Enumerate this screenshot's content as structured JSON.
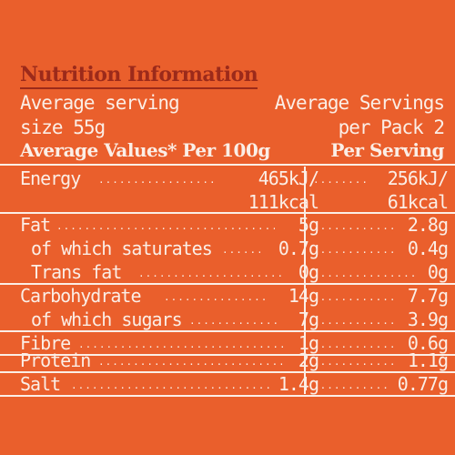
{
  "title": "Nutrition Information",
  "serving": {
    "left_line1": "Average serving",
    "left_line2": "size 55g",
    "right_line1": "Average Servings",
    "right_line2": "per Pack 2"
  },
  "header": {
    "left": "Average Values* Per 100g",
    "right": "Per Serving"
  },
  "rows": [
    {
      "label": "Energy",
      "per100": "465kJ/",
      "per_serving": "256kJ/"
    },
    {
      "label": "",
      "per100": "111kcal",
      "per_serving": "61kcal"
    },
    {
      "label": "Fat",
      "per100": "5g",
      "per_serving": "2.8g"
    },
    {
      "label": "of which saturates",
      "per100": "0.7g",
      "per_serving": "0.4g"
    },
    {
      "label": "Trans fat",
      "per100": "0g",
      "per_serving": "0g"
    },
    {
      "label": "Carbohydrate",
      "per100": "14g",
      "per_serving": "7.7g"
    },
    {
      "label": "of which sugars",
      "per100": "7g",
      "per_serving": "3.9g"
    },
    {
      "label": "Fibre",
      "per100": "1g",
      "per_serving": "0.6g"
    },
    {
      "label": "Protein",
      "per100": "2g",
      "per_serving": "1.1g"
    },
    {
      "label": "Salt",
      "per100": "1.4g",
      "per_serving": "0.77g"
    }
  ],
  "colors": {
    "background": "#ea5f2c",
    "title": "#9c2a1a",
    "text": "#fbeee6"
  }
}
